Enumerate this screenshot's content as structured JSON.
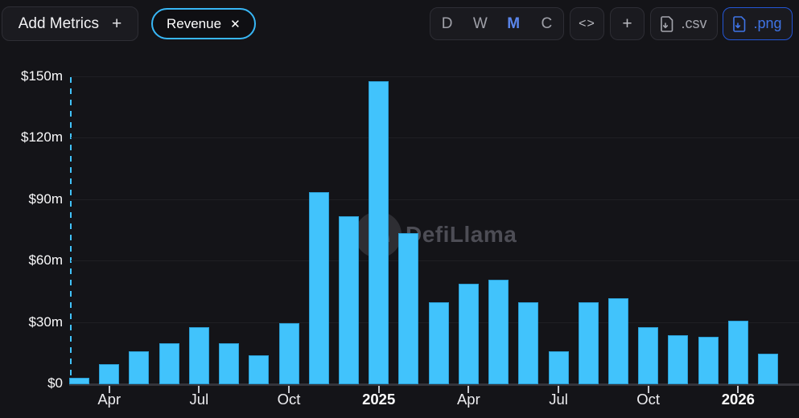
{
  "header": {
    "add_metrics_label": "Add Metrics",
    "add_metrics_plus": "+",
    "metric_chips": [
      {
        "label": "Revenue",
        "close": "✕"
      }
    ],
    "interval_options": [
      {
        "label": "D",
        "active": false
      },
      {
        "label": "W",
        "active": false
      },
      {
        "label": "M",
        "active": true
      },
      {
        "label": "C",
        "active": false
      }
    ],
    "embed_label": "<>",
    "add_chart_label": "+",
    "csv_label": ".csv",
    "png_label": ".png"
  },
  "watermark": {
    "text": "DefiLlama"
  },
  "colors": {
    "background": "#141418",
    "bar": "#41c3fc",
    "chip_border": "#38b7f6",
    "active_interval": "#5b86ec",
    "png_accent": "#3f74e6",
    "gridline": "#1f1f24"
  },
  "chart_data": {
    "type": "bar",
    "series_name": "Revenue",
    "unit": "$m",
    "grid": true,
    "legend_position": "none",
    "ylim": [
      0,
      150
    ],
    "categories": [
      "Mar 2024",
      "Apr 2024",
      "May 2024",
      "Jun 2024",
      "Jul 2024",
      "Aug 2024",
      "Sep 2024",
      "Oct 2024",
      "Nov 2024",
      "Dec 2024",
      "Jan 2025",
      "Feb 2025",
      "Mar 2025",
      "Apr 2025",
      "May 2025",
      "Jun 2025",
      "Jul 2025",
      "Aug 2025",
      "Sep 2025",
      "Oct 2025",
      "Nov 2025",
      "Dec 2025",
      "Jan 2026",
      "Feb 2026"
    ],
    "values": [
      3,
      10,
      16,
      20,
      28,
      20,
      14,
      30,
      94,
      82,
      148,
      74,
      40,
      49,
      51,
      40,
      16,
      40,
      42,
      28,
      24,
      23,
      31,
      15
    ],
    "y_ticks": [
      {
        "label": "$0",
        "value": 0
      },
      {
        "label": "$30m",
        "value": 30
      },
      {
        "label": "$60m",
        "value": 60
      },
      {
        "label": "$90m",
        "value": 90
      },
      {
        "label": "$120m",
        "value": 120
      },
      {
        "label": "$150m",
        "value": 150
      }
    ],
    "x_ticks": [
      {
        "index": 1,
        "label": "Apr",
        "bold": false
      },
      {
        "index": 4,
        "label": "Jul",
        "bold": false
      },
      {
        "index": 7,
        "label": "Oct",
        "bold": false
      },
      {
        "index": 10,
        "label": "2025",
        "bold": true
      },
      {
        "index": 13,
        "label": "Apr",
        "bold": false
      },
      {
        "index": 16,
        "label": "Jul",
        "bold": false
      },
      {
        "index": 19,
        "label": "Oct",
        "bold": false
      },
      {
        "index": 22,
        "label": "2026",
        "bold": true
      }
    ]
  }
}
